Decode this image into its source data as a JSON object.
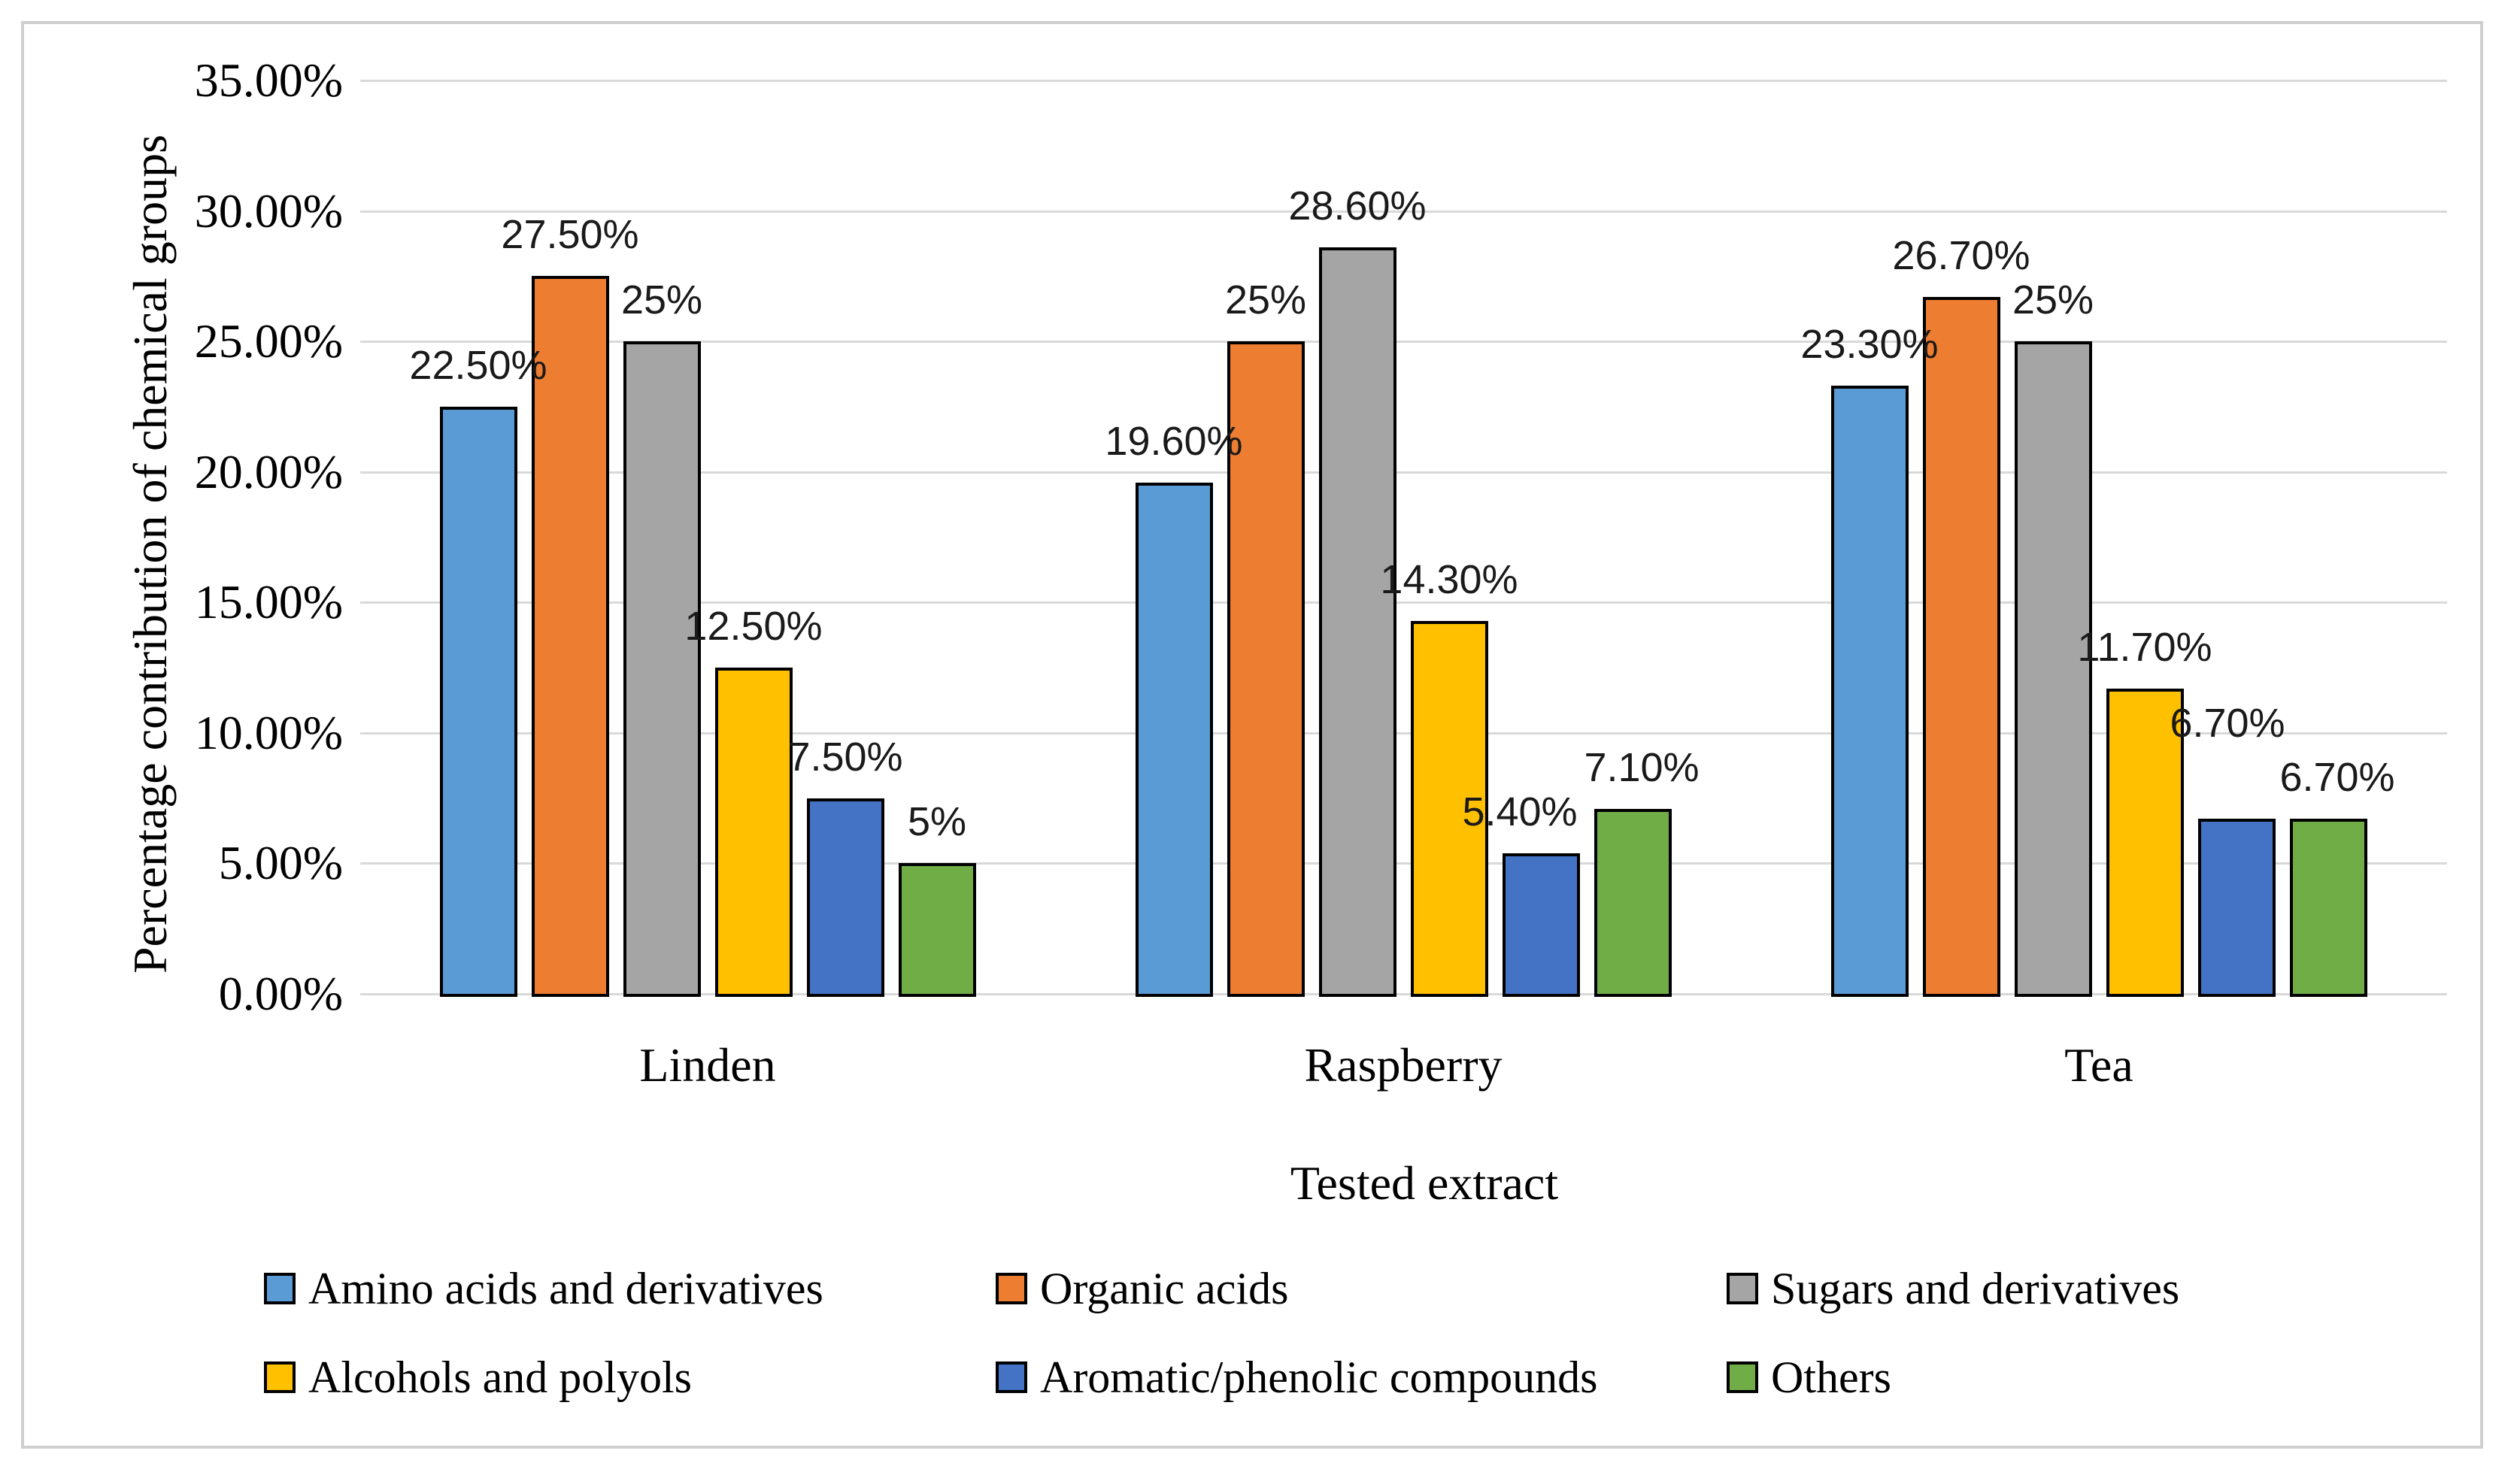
{
  "chart_data": {
    "type": "bar",
    "title": "",
    "xlabel": "Tested extract",
    "ylabel": "Percentage contribution of chemical groups",
    "categories": [
      "Linden",
      "Raspberry",
      "Tea"
    ],
    "series": [
      {
        "name": "Amino acids and derivatives",
        "color": "#5B9BD5",
        "values": [
          22.5,
          19.6,
          23.3
        ],
        "labels": [
          "22.50%",
          "19.60%",
          "23.30%"
        ]
      },
      {
        "name": "Organic acids",
        "color": "#ED7D31",
        "values": [
          27.5,
          25.0,
          26.7
        ],
        "labels": [
          "27.50%",
          "25%",
          "26.70%"
        ]
      },
      {
        "name": "Sugars and derivatives",
        "color": "#A5A5A5",
        "values": [
          25.0,
          28.6,
          25.0
        ],
        "labels": [
          "25%",
          "28.60%",
          "25%"
        ]
      },
      {
        "name": "Alcohols and polyols",
        "color": "#FFC000",
        "values": [
          12.5,
          14.3,
          11.7
        ],
        "labels": [
          "12.50%",
          "14.30%",
          "11.70%"
        ]
      },
      {
        "name": "Aromatic/phenolic compounds",
        "color": "#4472C4",
        "values": [
          7.5,
          5.4,
          6.7
        ],
        "labels": [
          "7.50%",
          "5.40%",
          "6.70%"
        ]
      },
      {
        "name": "Others",
        "color": "#70AD47",
        "values": [
          5.0,
          7.1,
          6.7
        ],
        "labels": [
          "5%",
          "7.10%",
          "6.70%"
        ]
      }
    ],
    "ylim": [
      0,
      35
    ],
    "ytick_step": 5,
    "y_ticks": [
      {
        "v": 0,
        "label": "0.00%"
      },
      {
        "v": 5,
        "label": "5.00%"
      },
      {
        "v": 10,
        "label": "10.00%"
      },
      {
        "v": 15,
        "label": "15.00%"
      },
      {
        "v": 20,
        "label": "20.00%"
      },
      {
        "v": 25,
        "label": "25.00%"
      },
      {
        "v": 30,
        "label": "30.00%"
      },
      {
        "v": 35,
        "label": "35.00%"
      }
    ],
    "grid": true,
    "legend_position": "bottom"
  }
}
